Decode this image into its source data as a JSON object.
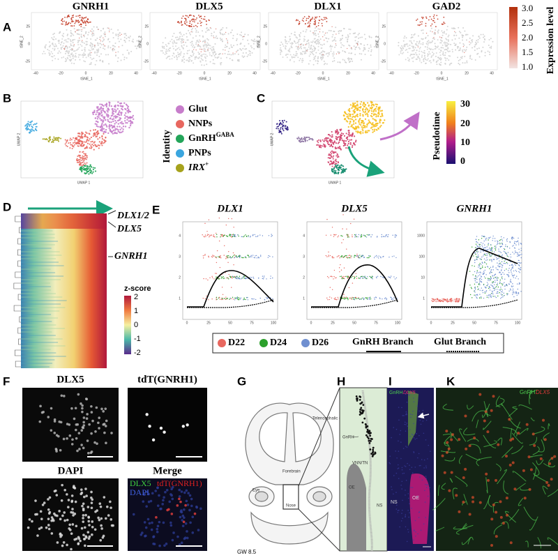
{
  "panel_a": {
    "label": "A",
    "genes": [
      "GNRH1",
      "DLX5",
      "DLX1",
      "GAD2"
    ],
    "x_axis": "tSNE_1",
    "y_axis": "tSNE_2",
    "x_ticks": [
      "-40",
      "-20",
      "0",
      "20",
      "40"
    ],
    "y_ticks": [
      "25",
      "0",
      "-25"
    ],
    "colorbar": {
      "title": "Expression level",
      "ticks": [
        "3.0",
        "2.5",
        "2.0",
        "1.5",
        "1.0"
      ]
    }
  },
  "panel_b": {
    "label": "B",
    "x_axis": "UMAP 1",
    "y_axis": "UMAP 2",
    "legend_title": "Identity",
    "legend": [
      {
        "name": "Glut",
        "color": "#c77dcb"
      },
      {
        "name": "NNPs",
        "color": "#e8675f"
      },
      {
        "name": "GnRH",
        "superscript": "GABA",
        "color": "#23a55a"
      },
      {
        "name": "PNPs",
        "color": "#3ba6df"
      },
      {
        "name": "IRX",
        "superscript": "+",
        "color": "#a6a21c"
      }
    ]
  },
  "panel_c": {
    "label": "C",
    "x_axis": "UMAP 1",
    "y_axis": "UMAP 2",
    "colorbar": {
      "title": "Pseudotime",
      "ticks": [
        "30",
        "20",
        "10",
        "0"
      ]
    }
  },
  "panel_d": {
    "label": "D",
    "genes": [
      "DLX1/2",
      "DLX5",
      "GNRH1"
    ],
    "colorbar": {
      "title": "z-score",
      "ticks": [
        "2",
        "1",
        "0",
        "-1",
        "-2"
      ]
    }
  },
  "panel_e": {
    "label": "E",
    "plots": [
      {
        "gene": "DLX1",
        "y_ticks": [
          "4",
          "3",
          "2",
          "1"
        ]
      },
      {
        "gene": "DLX5",
        "y_ticks": [
          "4",
          "3",
          "2",
          "1"
        ]
      },
      {
        "gene": "GNRH1",
        "y_ticks": [
          "1000",
          "100",
          "10",
          "1"
        ]
      }
    ],
    "x_ticks": [
      "0",
      "25",
      "50",
      "75",
      "100"
    ],
    "legend": [
      {
        "name": "D22",
        "color": "#e8675f"
      },
      {
        "name": "D24",
        "color": "#2ca02c"
      },
      {
        "name": "D26",
        "color": "#6f8fd0"
      }
    ],
    "branches": [
      "GnRH Branch",
      "Glut Branch"
    ]
  },
  "panel_f": {
    "label": "F",
    "images": [
      "DLX5",
      "tdT(GNRH1)",
      "DAPI",
      "Merge"
    ],
    "merge_labels": [
      "DLX5",
      "tdT(GNRH1)",
      "DAPI"
    ]
  },
  "panel_g": {
    "label": "G",
    "labels": [
      "Telencephalic superventricle",
      "Forebrain",
      "Eye",
      "Nose",
      "GW 8.5"
    ]
  },
  "panel_h": {
    "label": "H",
    "labels": [
      "GnRH",
      "VNN/TN",
      "OE",
      "NS"
    ]
  },
  "panel_i": {
    "label": "I",
    "labels": [
      "GnRH",
      "DLX5",
      "NS",
      "OE"
    ]
  },
  "panel_k": {
    "label": "K",
    "labels": [
      "GnRH",
      "DLX5"
    ]
  }
}
